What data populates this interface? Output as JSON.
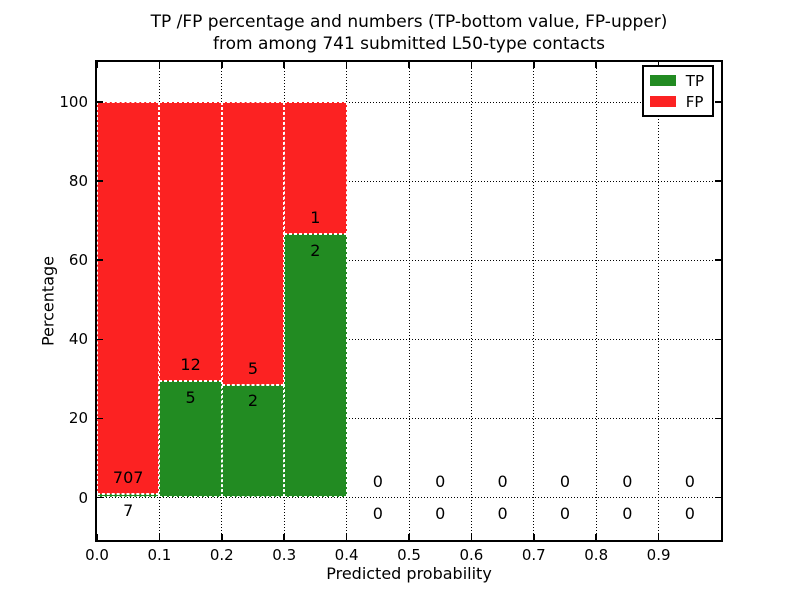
{
  "title": {
    "line1": "TP /FP percentage and numbers (TP-bottom value, FP-upper)",
    "line2": "from among 741 submitted L50-type contacts"
  },
  "axes": {
    "xlabel": "Predicted probability",
    "ylabel": "Percentage",
    "x_ticks": [
      {
        "value": 0.0,
        "label": "0.0"
      },
      {
        "value": 0.1,
        "label": "0.1"
      },
      {
        "value": 0.2,
        "label": "0.2"
      },
      {
        "value": 0.3,
        "label": "0.3"
      },
      {
        "value": 0.4,
        "label": "0.4"
      },
      {
        "value": 0.5,
        "label": "0.5"
      },
      {
        "value": 0.6,
        "label": "0.6"
      },
      {
        "value": 0.7,
        "label": "0.7"
      },
      {
        "value": 0.8,
        "label": "0.8"
      },
      {
        "value": 0.9,
        "label": "0.9"
      }
    ],
    "y_ticks": [
      {
        "value": 0,
        "label": "0"
      },
      {
        "value": 20,
        "label": "20"
      },
      {
        "value": 40,
        "label": "40"
      },
      {
        "value": 60,
        "label": "60"
      },
      {
        "value": 80,
        "label": "80"
      },
      {
        "value": 100,
        "label": "100"
      }
    ]
  },
  "legend": {
    "items": [
      {
        "label": "TP",
        "color": "#228b22"
      },
      {
        "label": "FP",
        "color": "#fc2222"
      }
    ]
  },
  "chart_data": {
    "type": "bar",
    "stacked": true,
    "title": "TP /FP percentage and numbers (TP-bottom value, FP-upper)\nfrom among 741 submitted L50-type contacts",
    "xlabel": "Predicted probability",
    "ylabel": "Percentage",
    "xlim": [
      0.0,
      1.0
    ],
    "ylim": [
      -11,
      110
    ],
    "grid": true,
    "legend_position": "upper right",
    "total_contacts_shown_in_title": 741,
    "bin_edges": [
      0.0,
      0.1,
      0.2,
      0.3,
      0.4,
      0.5,
      0.6,
      0.7,
      0.8,
      0.9,
      1.0
    ],
    "bins": [
      {
        "x0": 0.0,
        "x1": 0.1,
        "tp_count": 7,
        "fp_count": 707,
        "tp_pct": 0.98,
        "fp_pct": 99.02
      },
      {
        "x0": 0.1,
        "x1": 0.2,
        "tp_count": 5,
        "fp_count": 12,
        "tp_pct": 29.41,
        "fp_pct": 70.59
      },
      {
        "x0": 0.2,
        "x1": 0.3,
        "tp_count": 2,
        "fp_count": 5,
        "tp_pct": 28.57,
        "fp_pct": 71.43
      },
      {
        "x0": 0.3,
        "x1": 0.4,
        "tp_count": 2,
        "fp_count": 1,
        "tp_pct": 66.67,
        "fp_pct": 33.33
      },
      {
        "x0": 0.4,
        "x1": 0.5,
        "tp_count": 0,
        "fp_count": 0,
        "tp_pct": 0,
        "fp_pct": 0
      },
      {
        "x0": 0.5,
        "x1": 0.6,
        "tp_count": 0,
        "fp_count": 0,
        "tp_pct": 0,
        "fp_pct": 0
      },
      {
        "x0": 0.6,
        "x1": 0.7,
        "tp_count": 0,
        "fp_count": 0,
        "tp_pct": 0,
        "fp_pct": 0
      },
      {
        "x0": 0.7,
        "x1": 0.8,
        "tp_count": 0,
        "fp_count": 0,
        "tp_pct": 0,
        "fp_pct": 0
      },
      {
        "x0": 0.8,
        "x1": 0.9,
        "tp_count": 0,
        "fp_count": 0,
        "tp_pct": 0,
        "fp_pct": 0
      },
      {
        "x0": 0.9,
        "x1": 1.0,
        "tp_count": 0,
        "fp_count": 0,
        "tp_pct": 0,
        "fp_pct": 0
      }
    ],
    "series": [
      {
        "name": "TP",
        "color": "#228b22"
      },
      {
        "name": "FP",
        "color": "#fc2222"
      }
    ]
  }
}
